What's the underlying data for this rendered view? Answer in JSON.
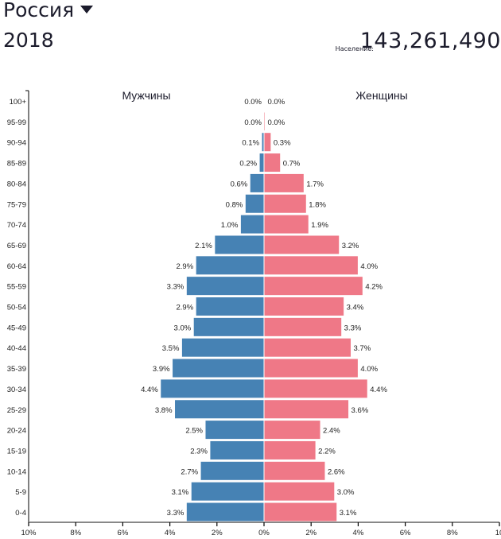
{
  "header": {
    "country": "Россия",
    "year": "2018",
    "population_label": "Население:",
    "population_value": "143,261,490"
  },
  "colors": {
    "male": "#4682b4",
    "female": "#ef7887",
    "axis": "#000000",
    "bottom_axis": "#888888"
  },
  "chart_data": {
    "type": "bar",
    "orientation": "horizontal-population-pyramid",
    "title": "Россия 2018",
    "categories": [
      "100+",
      "95-99",
      "90-94",
      "85-89",
      "80-84",
      "75-79",
      "70-74",
      "65-69",
      "60-64",
      "55-59",
      "50-54",
      "45-49",
      "40-44",
      "35-39",
      "30-34",
      "25-29",
      "20-24",
      "15-19",
      "10-14",
      "5-9",
      "0-4"
    ],
    "series": [
      {
        "name": "Мужчины",
        "side": "left",
        "values": [
          0.0,
          0.0,
          0.1,
          0.2,
          0.6,
          0.8,
          1.0,
          2.1,
          2.9,
          3.3,
          2.9,
          3.0,
          3.5,
          3.9,
          4.4,
          3.8,
          2.5,
          2.3,
          2.7,
          3.1,
          3.3
        ]
      },
      {
        "name": "Женщины",
        "side": "right",
        "values": [
          0.0,
          0.0,
          0.3,
          0.7,
          1.7,
          1.8,
          1.9,
          3.2,
          4.0,
          4.2,
          3.4,
          3.3,
          3.7,
          4.0,
          4.4,
          3.6,
          2.4,
          2.2,
          2.6,
          3.0,
          3.1
        ]
      }
    ],
    "xlabel": "",
    "ylabel": "",
    "x_range": [
      -10,
      10
    ],
    "x_ticks": [
      "10%",
      "8%",
      "6%",
      "4%",
      "2%",
      "0%",
      "2%",
      "4%",
      "6%",
      "8%",
      "10"
    ],
    "grid": false,
    "legend": "titles above each side"
  }
}
